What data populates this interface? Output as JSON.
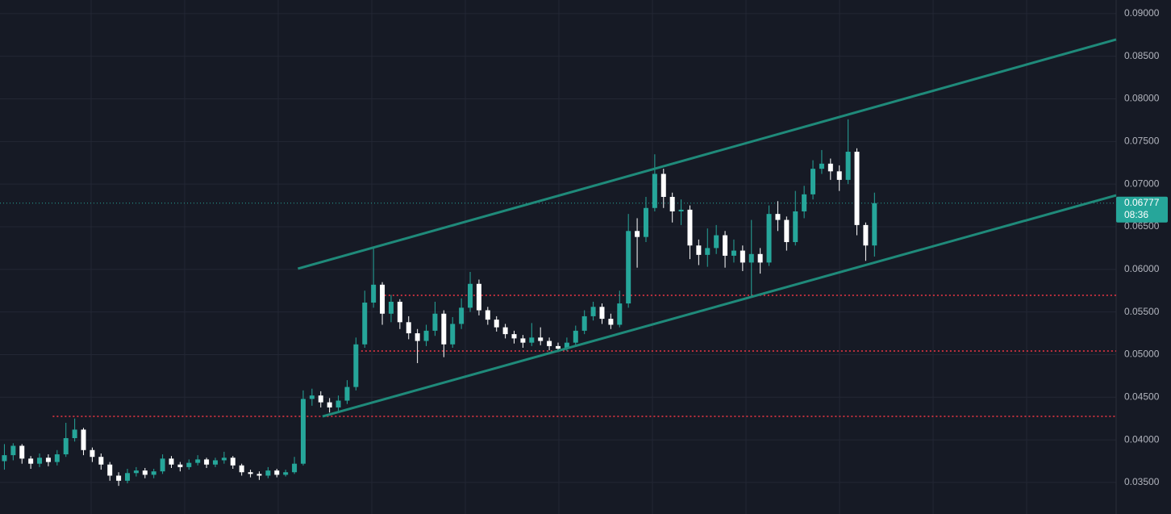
{
  "chart_data": {
    "type": "candlestick",
    "xlim": [
      -0.5,
      126.5
    ],
    "ylim": [
      0.0313,
      0.0916
    ],
    "yticks": [
      {
        "value": 0.035,
        "label": "0.03500"
      },
      {
        "value": 0.04,
        "label": "0.04000"
      },
      {
        "value": 0.045,
        "label": "0.04500"
      },
      {
        "value": 0.05,
        "label": "0.05000"
      },
      {
        "value": 0.055,
        "label": "0.05500"
      },
      {
        "value": 0.06,
        "label": "0.06000"
      },
      {
        "value": 0.065,
        "label": "0.06500"
      },
      {
        "value": 0.07,
        "label": "0.07000"
      },
      {
        "value": 0.075,
        "label": "0.07500"
      },
      {
        "value": 0.08,
        "label": "0.08000"
      },
      {
        "value": 0.085,
        "label": "0.08500"
      },
      {
        "value": 0.09,
        "label": "0.09000"
      }
    ],
    "grid": true,
    "up_color": "#26a69a",
    "down_color": "#ffffff",
    "open": [
      0.0375,
      0.0382,
      0.0393,
      0.0378,
      0.0372,
      0.0379,
      0.0374,
      0.0383,
      0.0402,
      0.0412,
      0.0388,
      0.038,
      0.0371,
      0.0358,
      0.0352,
      0.0361,
      0.0364,
      0.0359,
      0.0363,
      0.0378,
      0.0371,
      0.0368,
      0.0373,
      0.0377,
      0.0371,
      0.0376,
      0.0379,
      0.037,
      0.0362,
      0.036,
      0.0358,
      0.0364,
      0.0359,
      0.0362,
      0.0372,
      0.0448,
      0.0452,
      0.0444,
      0.0438,
      0.0446,
      0.0462,
      0.0512,
      0.0561,
      0.0582,
      0.0548,
      0.0562,
      0.0538,
      0.0525,
      0.0516,
      0.0528,
      0.0548,
      0.0512,
      0.0536,
      0.0555,
      0.0583,
      0.0552,
      0.0541,
      0.0532,
      0.0524,
      0.0519,
      0.0514,
      0.052,
      0.0516,
      0.051,
      0.0507,
      0.0514,
      0.0528,
      0.0545,
      0.0556,
      0.0542,
      0.0535,
      0.056,
      0.0645,
      0.0638,
      0.0672,
      0.0712,
      0.0685,
      0.0668,
      0.067,
      0.0628,
      0.0617,
      0.0625,
      0.064,
      0.0616,
      0.0622,
      0.0608,
      0.0618,
      0.0608,
      0.0665,
      0.0658,
      0.0632,
      0.0668,
      0.0688,
      0.0718,
      0.0724,
      0.0715,
      0.0705,
      0.0738,
      0.0652,
      0.0628
    ],
    "high": [
      0.0395,
      0.0396,
      0.0395,
      0.0381,
      0.0384,
      0.0383,
      0.0388,
      0.042,
      0.0425,
      0.0414,
      0.0391,
      0.0384,
      0.0374,
      0.0362,
      0.0366,
      0.0368,
      0.0367,
      0.0366,
      0.0383,
      0.0381,
      0.0374,
      0.0377,
      0.0382,
      0.0379,
      0.0379,
      0.0386,
      0.0381,
      0.0372,
      0.0365,
      0.0363,
      0.0368,
      0.0366,
      0.0365,
      0.038,
      0.0458,
      0.046,
      0.0457,
      0.0449,
      0.0452,
      0.047,
      0.052,
      0.0575,
      0.0626,
      0.0585,
      0.057,
      0.0565,
      0.0545,
      0.053,
      0.0535,
      0.0562,
      0.0552,
      0.0544,
      0.0566,
      0.0597,
      0.0588,
      0.0556,
      0.0545,
      0.0536,
      0.0528,
      0.0523,
      0.0537,
      0.0532,
      0.052,
      0.0514,
      0.052,
      0.0534,
      0.0552,
      0.0562,
      0.056,
      0.0548,
      0.0575,
      0.0665,
      0.066,
      0.0685,
      0.0735,
      0.0718,
      0.069,
      0.0682,
      0.0675,
      0.0635,
      0.0648,
      0.0652,
      0.0645,
      0.0635,
      0.0628,
      0.0658,
      0.0625,
      0.0675,
      0.068,
      0.0662,
      0.0692,
      0.0698,
      0.0728,
      0.074,
      0.073,
      0.0722,
      0.0776,
      0.0742,
      0.0655,
      0.069
    ],
    "low": [
      0.0365,
      0.0376,
      0.0372,
      0.0366,
      0.0368,
      0.0369,
      0.037,
      0.038,
      0.0398,
      0.0382,
      0.0374,
      0.0365,
      0.0352,
      0.0346,
      0.0349,
      0.0357,
      0.0355,
      0.0355,
      0.036,
      0.0367,
      0.0363,
      0.0365,
      0.037,
      0.0367,
      0.0368,
      0.0372,
      0.0366,
      0.0358,
      0.0356,
      0.0353,
      0.0355,
      0.0356,
      0.0357,
      0.036,
      0.037,
      0.044,
      0.0438,
      0.0432,
      0.0434,
      0.0442,
      0.0458,
      0.0508,
      0.0555,
      0.0535,
      0.0538,
      0.053,
      0.0518,
      0.049,
      0.051,
      0.0522,
      0.0497,
      0.0508,
      0.053,
      0.055,
      0.0546,
      0.0535,
      0.0527,
      0.0519,
      0.0513,
      0.0508,
      0.051,
      0.0511,
      0.0505,
      0.0503,
      0.0504,
      0.051,
      0.0524,
      0.054,
      0.0536,
      0.053,
      0.0532,
      0.0555,
      0.0602,
      0.0632,
      0.0668,
      0.0672,
      0.0655,
      0.0652,
      0.0612,
      0.0605,
      0.0603,
      0.0618,
      0.0602,
      0.0608,
      0.0598,
      0.0568,
      0.0595,
      0.0604,
      0.0645,
      0.0622,
      0.0628,
      0.066,
      0.0682,
      0.0712,
      0.0705,
      0.0692,
      0.07,
      0.064,
      0.061,
      0.0615
    ],
    "close": [
      0.0382,
      0.0393,
      0.0378,
      0.0372,
      0.0379,
      0.0374,
      0.0383,
      0.0402,
      0.0412,
      0.0388,
      0.038,
      0.0371,
      0.0358,
      0.0352,
      0.0361,
      0.0364,
      0.0359,
      0.0363,
      0.0378,
      0.0371,
      0.0368,
      0.0373,
      0.0377,
      0.0371,
      0.0376,
      0.0379,
      0.037,
      0.0362,
      0.036,
      0.0358,
      0.0364,
      0.0359,
      0.0362,
      0.0372,
      0.0448,
      0.0452,
      0.0444,
      0.0438,
      0.0446,
      0.0462,
      0.0512,
      0.0561,
      0.0582,
      0.0548,
      0.0562,
      0.0538,
      0.0525,
      0.0516,
      0.0528,
      0.0548,
      0.0512,
      0.0536,
      0.0555,
      0.0583,
      0.0552,
      0.0541,
      0.0532,
      0.0524,
      0.0519,
      0.0514,
      0.052,
      0.0516,
      0.051,
      0.0507,
      0.0514,
      0.0528,
      0.0545,
      0.0556,
      0.0542,
      0.0535,
      0.056,
      0.0645,
      0.0638,
      0.0672,
      0.0712,
      0.0685,
      0.0668,
      0.067,
      0.0628,
      0.0617,
      0.0625,
      0.064,
      0.0616,
      0.0622,
      0.0608,
      0.0618,
      0.0608,
      0.0665,
      0.0658,
      0.0632,
      0.0668,
      0.0688,
      0.0718,
      0.0724,
      0.0715,
      0.0705,
      0.0738,
      0.0652,
      0.0628,
      0.06777
    ],
    "trend_lines": [
      {
        "color": "#1f8a7a",
        "x": [
          33.4,
          126.5
        ],
        "y": [
          0.06008,
          0.08697
        ]
      },
      {
        "color": "#1f8a7a",
        "x": [
          36.2,
          126.5
        ],
        "y": [
          0.04275,
          0.06869
        ]
      }
    ],
    "levels": [
      {
        "color": "#f23645",
        "x": [
          5.5,
          126.5
        ],
        "y": 0.04275
      },
      {
        "color": "#f23645",
        "x": [
          42.8,
          126.5
        ],
        "y": 0.05695
      },
      {
        "color": "#f23645",
        "x": [
          40.6,
          126.5
        ],
        "y": 0.05042
      }
    ],
    "last_price": 0.06777,
    "last_price_color": "#26a69a",
    "countdown": "08:36"
  }
}
